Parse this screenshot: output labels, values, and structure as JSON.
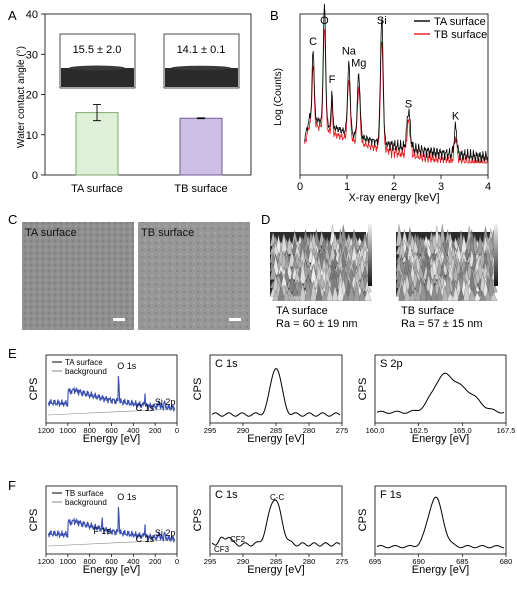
{
  "figure": {
    "panels": {
      "A": {
        "letter": "A",
        "chart_data": {
          "type": "bar",
          "ylabel": "Water contact angle (°)",
          "ylim": [
            0,
            40
          ],
          "yticks": [
            "0",
            "10",
            "20",
            "30",
            "40"
          ],
          "categories": [
            "TA surface",
            "TB surface"
          ],
          "values": [
            15.5,
            14.1
          ],
          "errors": [
            2.0,
            0.1
          ],
          "bar_colors": [
            "#dff0d8",
            "#cdbfe3"
          ],
          "bar_edge_colors": [
            "#7fa86e",
            "#6d5c96"
          ],
          "insets": [
            "15.5 ± 2.0",
            "14.1 ± 0.1"
          ]
        }
      },
      "B": {
        "letter": "B",
        "chart_data": {
          "type": "line",
          "xlabel": "X-ray energy [keV]",
          "ylabel": "Log (Counts)",
          "xlim": [
            0,
            4
          ],
          "xticks": [
            "0",
            "1",
            "2",
            "3",
            "4"
          ],
          "series": [
            {
              "name": "TA surface",
              "color": "#000000"
            },
            {
              "name": "TB surface",
              "color": "#e8161b"
            }
          ],
          "peaks": [
            {
              "label": "C",
              "x": 0.28
            },
            {
              "label": "O",
              "x": 0.52
            },
            {
              "label": "F",
              "x": 0.68
            },
            {
              "label": "Na",
              "x": 1.04
            },
            {
              "label": "Mg",
              "x": 1.25
            },
            {
              "label": "Si",
              "x": 1.74
            },
            {
              "label": "S",
              "x": 2.31
            },
            {
              "label": "K",
              "x": 3.31
            }
          ]
        }
      },
      "C": {
        "letter": "C",
        "images": [
          "TA surface",
          "TB surface"
        ]
      },
      "D": {
        "letter": "D",
        "images": [
          {
            "caption": "TA surface",
            "ra": "Ra = 60 ± 19 nm"
          },
          {
            "caption": "TB surface",
            "ra": "Ra = 57 ± 15 nm"
          }
        ]
      },
      "E": {
        "letter": "E",
        "chart_data": [
          {
            "type": "line",
            "ylabel": "CPS",
            "xlabel": "Energy [eV]",
            "xlim": [
              1200,
              0
            ],
            "xticks": [
              "1200",
              "1000",
              "800",
              "600",
              "400",
              "200",
              "0"
            ],
            "series": [
              {
                "name": "TA surface",
                "color": "#3a4fb0"
              },
              {
                "name": "background",
                "color": "#888888"
              }
            ],
            "peak_labels": [
              "O 1s",
              "C 1s",
              "Si 2p"
            ]
          },
          {
            "type": "line",
            "title": "C 1s",
            "ylabel": "CPS",
            "xlabel": "Energy [eV]",
            "xlim": [
              295,
              275
            ],
            "xticks": [
              "295",
              "290",
              "285",
              "280",
              "275"
            ],
            "peak_labels": []
          },
          {
            "type": "line",
            "title": "S 2p",
            "ylabel": "CPS",
            "xlabel": "Energy [eV]",
            "xlim": [
              160,
              167.5
            ],
            "xticks": [
              "160.0",
              "162.5",
              "165.0",
              "167.5"
            ],
            "peak_labels": []
          }
        ]
      },
      "F": {
        "letter": "F",
        "chart_data": [
          {
            "type": "line",
            "ylabel": "CPS",
            "xlabel": "Energy [eV]",
            "xlim": [
              1200,
              0
            ],
            "xticks": [
              "1200",
              "1000",
              "800",
              "600",
              "400",
              "200",
              "0"
            ],
            "series": [
              {
                "name": "TB surface",
                "color": "#3a4fb0"
              },
              {
                "name": "background",
                "color": "#888888"
              }
            ],
            "peak_labels": [
              "O 1s",
              "F 1s",
              "C 1s",
              "Si 2p"
            ]
          },
          {
            "type": "line",
            "title": "C 1s",
            "ylabel": "CPS",
            "xlabel": "Energy [eV]",
            "xlim": [
              295,
              275
            ],
            "xticks": [
              "295",
              "290",
              "285",
              "280",
              "275"
            ],
            "peak_labels": [
              "C-C",
              "CF2",
              "CF3"
            ]
          },
          {
            "type": "line",
            "title": "F 1s",
            "ylabel": "CPS",
            "xlabel": "Energy [eV]",
            "xlim": [
              695,
              680
            ],
            "xticks": [
              "695",
              "690",
              "685",
              "680"
            ],
            "peak_labels": []
          }
        ]
      }
    }
  }
}
